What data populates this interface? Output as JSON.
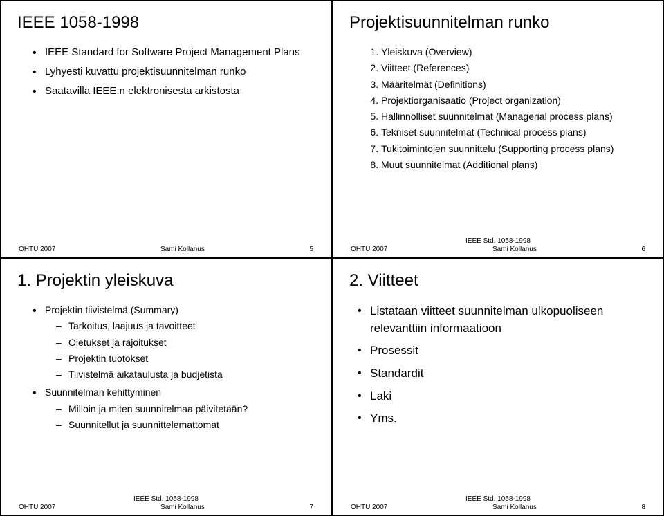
{
  "footer": {
    "course": "OHTU 2007",
    "author": "Sami Kollanus",
    "std": "IEEE Std. 1058-1998"
  },
  "slides": [
    {
      "number": "5",
      "title": "IEEE 1058-1998",
      "show_std": false,
      "bullets": [
        "IEEE Standard for Software Project Management Plans",
        "Lyhyesti kuvattu projektisuunnitelman runko",
        "Saatavilla IEEE:n elektronisesta arkistosta"
      ]
    },
    {
      "number": "6",
      "title": "Projektisuunnitelman runko",
      "show_std": true,
      "numbered": [
        "Yleiskuva (Overview)",
        "Viitteet (References)",
        "Määritelmät (Definitions)",
        "Projektiorganisaatio (Project organization)",
        "Hallinnolliset suunnitelmat (Managerial process plans)",
        "Tekniset suunnitelmat (Technical process plans)",
        "Tukitoimintojen suunnittelu (Supporting process plans)",
        "Muut suunnitelmat (Additional plans)"
      ]
    },
    {
      "number": "7",
      "title": "1. Projektin yleiskuva",
      "show_std": true,
      "groups": [
        {
          "label": "Projektin tiivistelmä (Summary)",
          "subs": [
            "Tarkoitus, laajuus ja tavoitteet",
            "Oletukset ja rajoitukset",
            "Projektin tuotokset",
            "Tiivistelmä aikataulusta ja budjetista"
          ]
        },
        {
          "label": "Suunnitelman kehittyminen",
          "subs": [
            "Milloin ja miten suunnitelmaa päivitetään?",
            "Suunnitellut ja suunnittelemattomat"
          ]
        }
      ]
    },
    {
      "number": "8",
      "title": "2. Viitteet",
      "show_std": true,
      "bullets": [
        "Listataan viitteet suunnitelman ulkopuoliseen relevanttiin informaatioon",
        "Prosessit",
        "Standardit",
        "Laki",
        "Yms."
      ]
    }
  ]
}
